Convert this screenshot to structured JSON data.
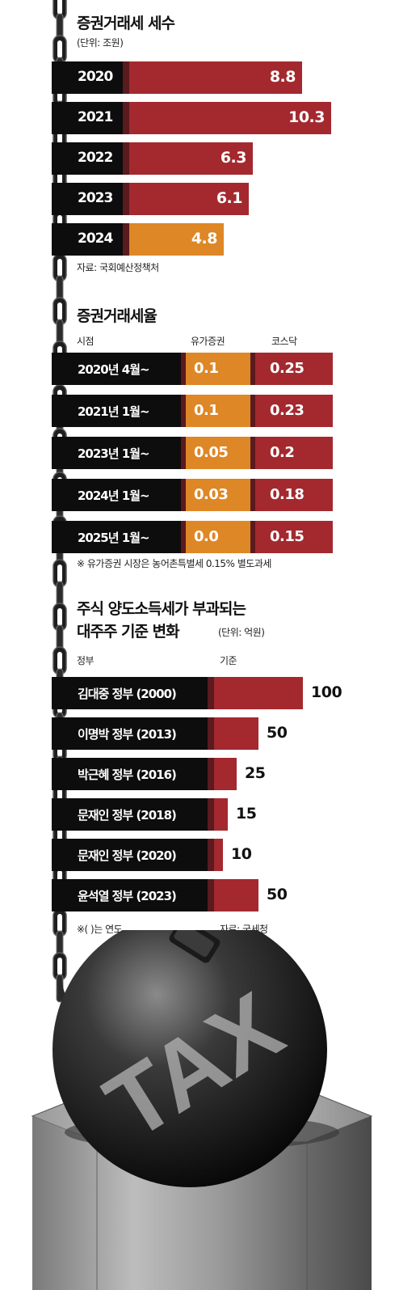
{
  "chart1": {
    "title": "증권거래세 세수",
    "unit": "(단위: 조원)",
    "source": "자료: 국회예산정책처",
    "chart_data": {
      "type": "bar",
      "categories": [
        "2020",
        "2021",
        "2022",
        "2023",
        "2024"
      ],
      "values": [
        8.8,
        10.3,
        6.3,
        6.1,
        4.8
      ],
      "value_labels": [
        "8.8",
        "10.3",
        "6.3",
        "6.1",
        "4.8"
      ],
      "title": "증권거래세 세수",
      "unit": "조원",
      "highlight": {
        "category": "2024",
        "color": "#de8726"
      },
      "bar_color": "#a3292f"
    }
  },
  "chart2": {
    "title": "증권거래세율",
    "col_header_period": "시점",
    "col_header_kospi": "유가증권",
    "col_header_kosdaq": "코스닥",
    "note": "※ 유가증권 시장은 농어촌특별세 0.15% 별도과세",
    "chart_data": {
      "type": "table",
      "categories": [
        "2020년 4월~",
        "2021년 1월~",
        "2023년 1월~",
        "2024년 1월~",
        "2025년 1월~"
      ],
      "series": [
        {
          "name": "유가증권",
          "values": [
            0.1,
            0.1,
            0.05,
            0.03,
            0.0
          ],
          "labels": [
            "0.1",
            "0.1",
            "0.05",
            "0.03",
            "0.0"
          ],
          "color": "#de8726"
        },
        {
          "name": "코스닥",
          "values": [
            0.25,
            0.23,
            0.2,
            0.18,
            0.15
          ],
          "labels": [
            "0.25",
            "0.23",
            "0.2",
            "0.18",
            "0.15"
          ],
          "color": "#a3292f"
        }
      ],
      "title": "증권거래세율"
    }
  },
  "chart3": {
    "title_line1": "주식 양도소득세가 부과되는",
    "title_line2": "대주주 기준 변화",
    "unit": "(단위: 억원)",
    "col_header_gov": "정부",
    "col_header_criteria": "기준",
    "note": "※( )는 연도",
    "source": "자료: 국세청",
    "chart_data": {
      "type": "bar",
      "categories": [
        "김대중 정부 (2000)",
        "이명박 정부 (2013)",
        "박근혜 정부 (2016)",
        "문재인 정부 (2018)",
        "문재인 정부 (2020)",
        "윤석열 정부 (2023)"
      ],
      "values": [
        100,
        50,
        25,
        15,
        10,
        50
      ],
      "value_labels": [
        "100",
        "50",
        "25",
        "15",
        "10",
        "50"
      ],
      "title": "주식 양도소득세가 부과되는 대주주 기준 변화",
      "unit": "억원",
      "bar_color": "#a3292f"
    }
  },
  "illustration": {
    "ball_text": "TAX"
  }
}
